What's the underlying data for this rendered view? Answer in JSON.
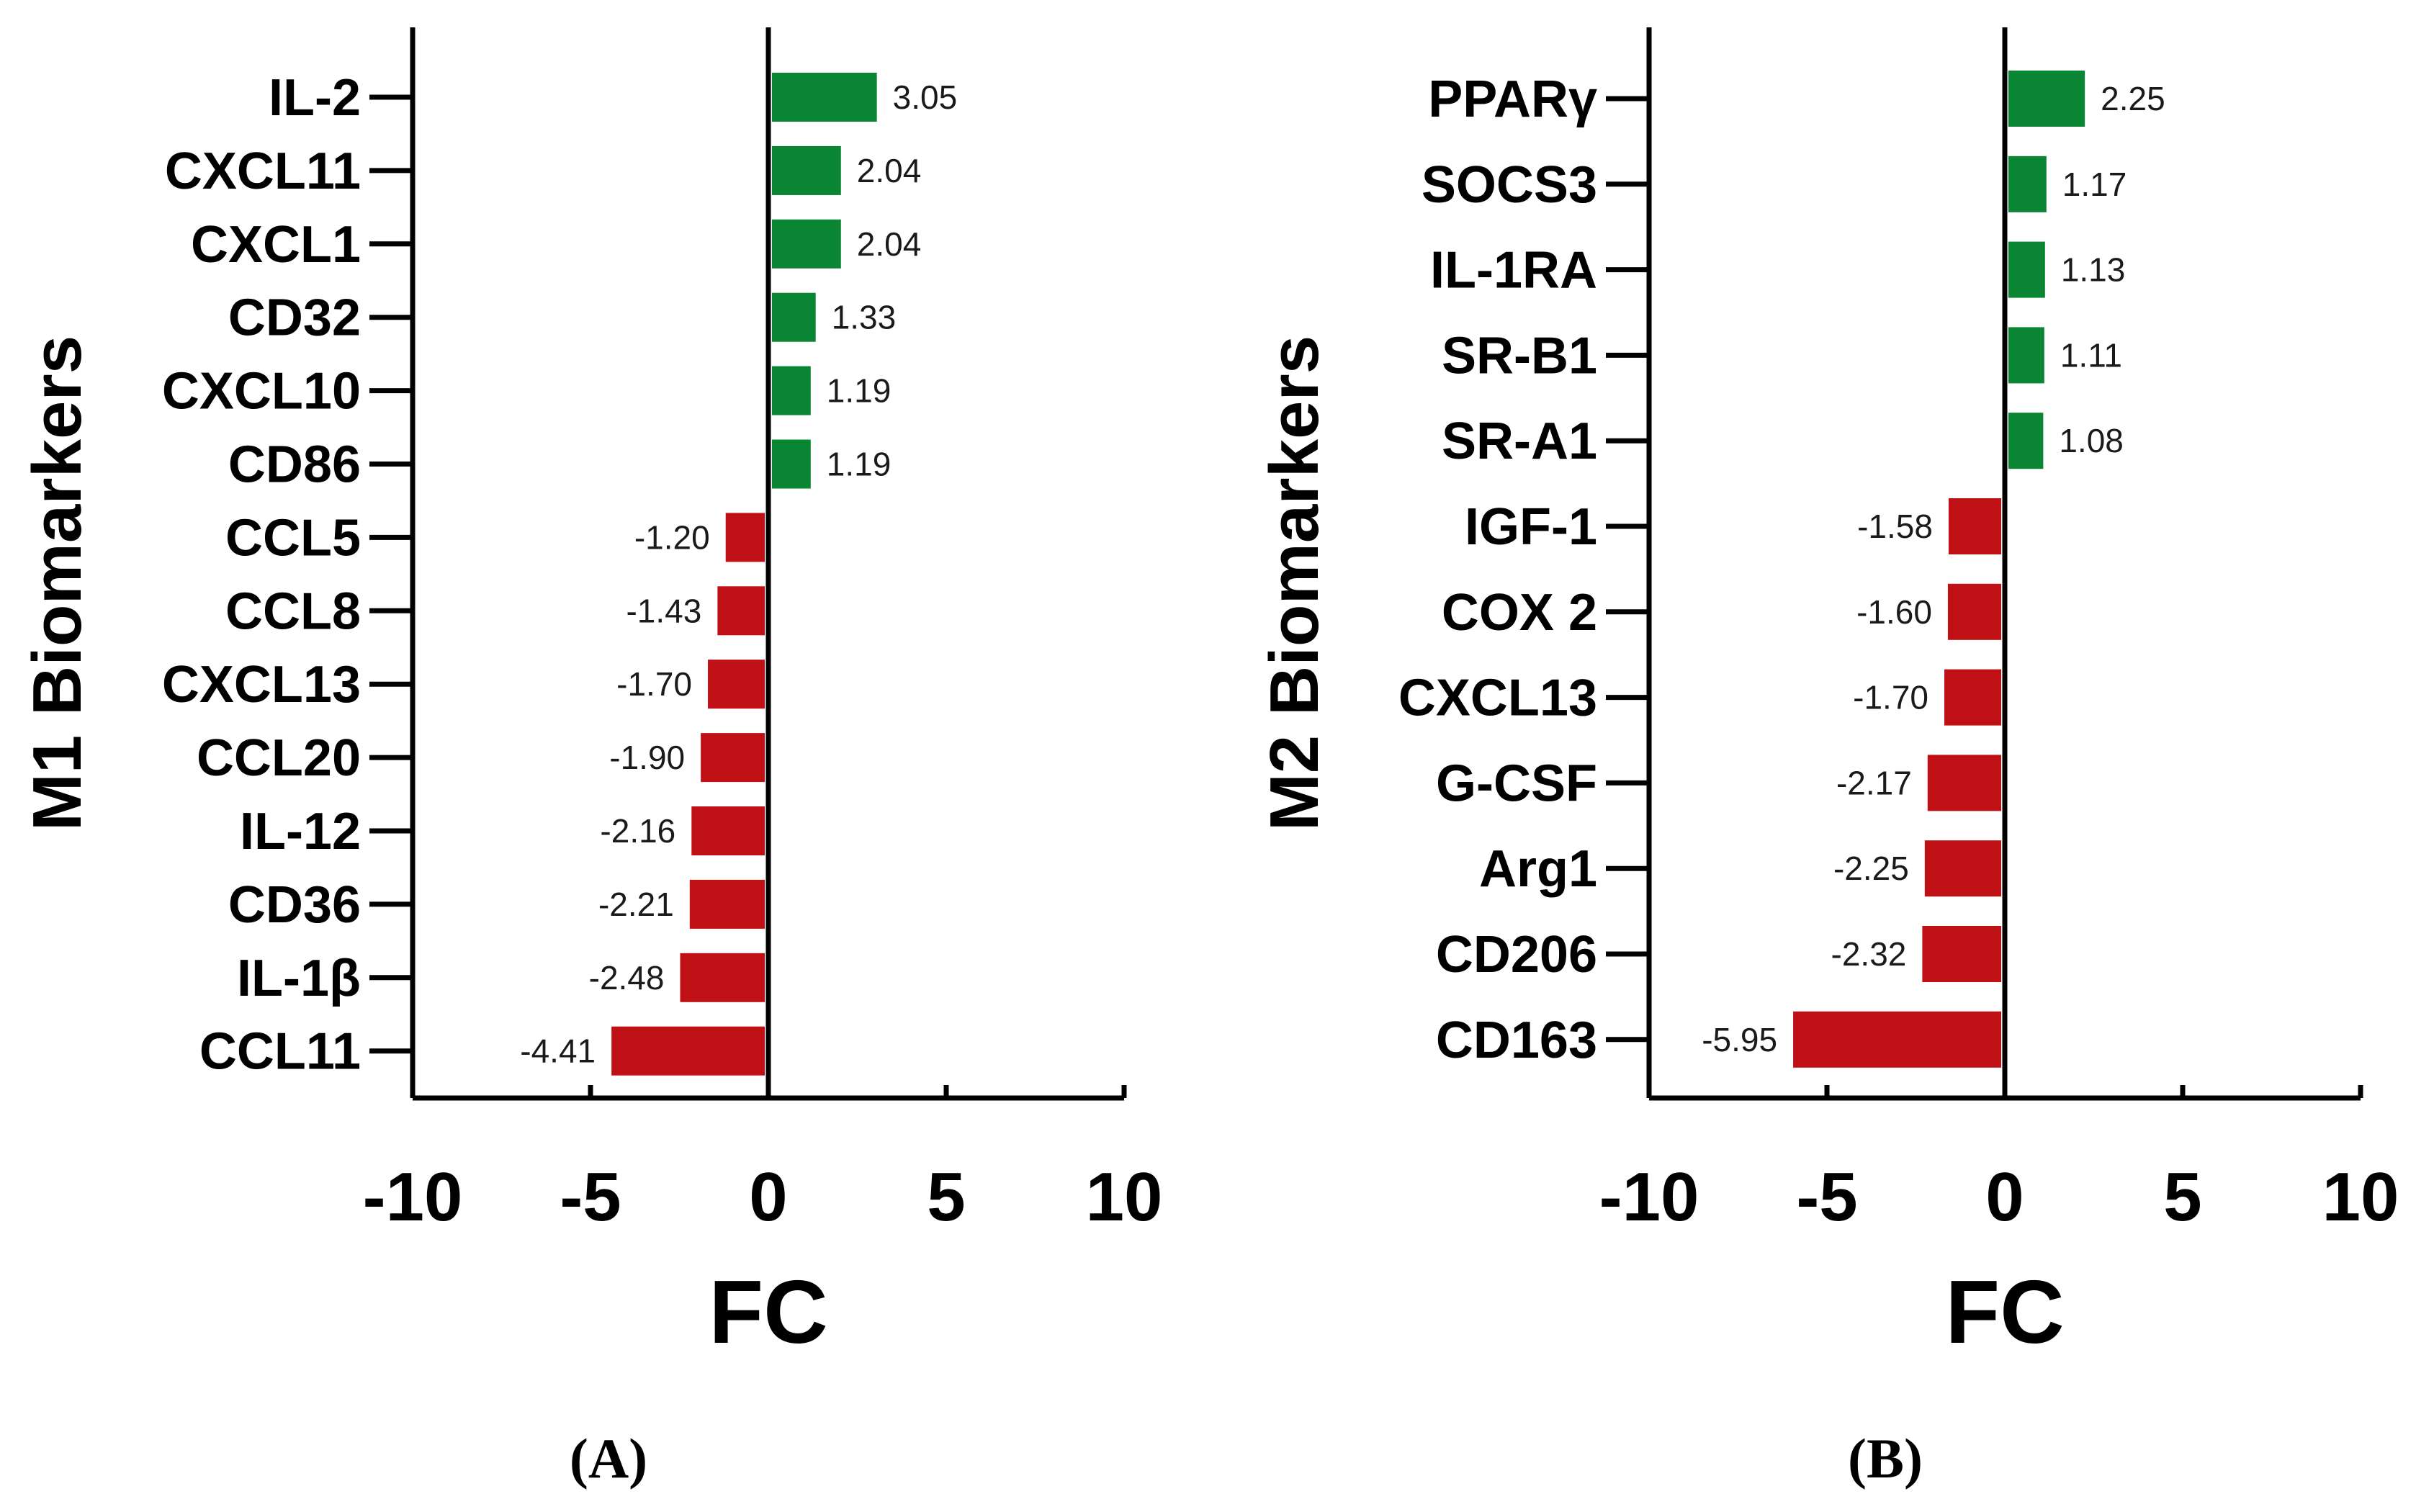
{
  "colors": {
    "positive": "#0a8533",
    "negative": "#bf1115",
    "axis": "#000000"
  },
  "chart_data": [
    {
      "type": "bar",
      "orientation": "horizontal",
      "panel_label": "(A)",
      "ylabel": "M1 Biomarkers",
      "xlabel": "FC",
      "xlim": [
        -10,
        10
      ],
      "xticks": [
        -10,
        -5,
        0,
        5,
        10
      ],
      "xtick_labels": [
        "-10",
        "-5",
        "0",
        "5",
        "10"
      ],
      "grid": false,
      "categories": [
        "IL-2",
        "CXCL11",
        "CXCL1",
        "CD32",
        "CXCL10",
        "CD86",
        "CCL5",
        "CCL8",
        "CXCL13",
        "CCL20",
        "IL-12",
        "CD36",
        "IL-1β",
        "CCL11"
      ],
      "values": [
        3.05,
        2.04,
        2.04,
        1.33,
        1.19,
        1.19,
        -1.2,
        -1.43,
        -1.7,
        -1.9,
        -2.16,
        -2.21,
        -2.48,
        -4.41
      ],
      "value_labels": [
        "3.05",
        "2.04",
        "2.04",
        "1.33",
        "1.19",
        "1.19",
        "-1.20",
        "-1.43",
        "-1.70",
        "-1.90",
        "-2.16",
        "-2.21",
        "-2.48",
        "-4.41"
      ]
    },
    {
      "type": "bar",
      "orientation": "horizontal",
      "panel_label": "(B)",
      "ylabel": "M2 Biomarkers",
      "xlabel": "FC",
      "xlim": [
        -10,
        10
      ],
      "xticks": [
        -10,
        -5,
        0,
        5,
        10
      ],
      "xtick_labels": [
        "-10",
        "-5",
        "0",
        "5",
        "10"
      ],
      "grid": false,
      "categories": [
        "PPARγ",
        "SOCS3",
        "IL-1RA",
        "SR-B1",
        "SR-A1",
        "IGF-1",
        "COX 2",
        "CXCL13",
        "G-CSF",
        "Arg1",
        "CD206",
        "CD163"
      ],
      "values": [
        2.25,
        1.17,
        1.13,
        1.11,
        1.08,
        -1.58,
        -1.6,
        -1.7,
        -2.17,
        -2.25,
        -2.32,
        -5.95
      ],
      "value_labels": [
        "2.25",
        "1.17",
        "1.13",
        "1.11",
        "1.08",
        "-1.58",
        "-1.60",
        "-1.70",
        "-2.17",
        "-2.25",
        "-2.32",
        "-5.95"
      ]
    }
  ]
}
